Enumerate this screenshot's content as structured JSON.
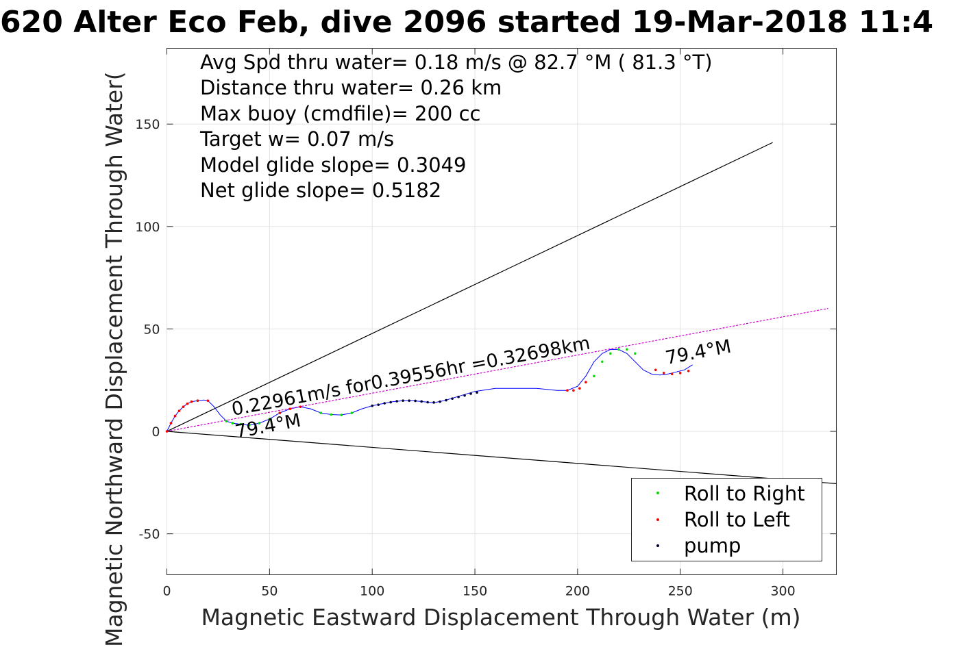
{
  "figure": {
    "title": "620 Alter Eco Feb, dive 2096 started 19-Mar-2018 11:4"
  },
  "chart_data": {
    "type": "scatter",
    "title": "620 Alter Eco Feb, dive 2096 started 19-Mar-2018 11:4",
    "xlabel": "Magnetic Eastward Displacement Through Water (m)",
    "ylabel": "Magnetic Northward Displacement Through Water(",
    "xlim": [
      0,
      326
    ],
    "ylim": [
      -70,
      187
    ],
    "xticks": [
      0,
      50,
      100,
      150,
      200,
      250,
      300
    ],
    "yticks": [
      -50,
      0,
      50,
      100,
      150
    ],
    "xtick_labels": [
      "0",
      "50",
      "100",
      "150",
      "200",
      "250",
      "300"
    ],
    "ytick_labels": [
      "-50",
      "0",
      "50",
      "100",
      "150"
    ],
    "grid": true,
    "stats_lines": [
      "Avg Spd thru water=  0.18 m/s @  82.7 °M ( 81.3 °T)",
      "Distance thru water=  0.26 km",
      "Max buoy (cmdfile)= 200 cc",
      "Target w= 0.07 m/s",
      "Model glide slope= 0.3049",
      "Net glide slope= 0.5182"
    ],
    "annotations": {
      "rate_label": "0.22961m/s for0.39556hr =0.32698km",
      "start_heading": "79.4°M",
      "end_heading": "79.4°M"
    },
    "legend": {
      "placement": "bottom-right",
      "entries": [
        {
          "label": "Roll to Right",
          "color": "#00e000"
        },
        {
          "label": "Roll to Left",
          "color": "#ff0000"
        },
        {
          "label": "pump",
          "color": "#000033"
        }
      ]
    },
    "colors": {
      "track": "#0000ff",
      "net_line": "#cc00cc",
      "bounds": "#000000",
      "roll_right": "#00e000",
      "roll_left": "#ff0000",
      "pump": "#000033"
    },
    "bound_lines": [
      {
        "name": "upper",
        "x": [
          0,
          295
        ],
        "y": [
          0,
          141
        ]
      },
      {
        "name": "lower",
        "x": [
          0,
          326
        ],
        "y": [
          0,
          -25.5
        ]
      }
    ],
    "net_line": {
      "x": [
        0,
        322
      ],
      "y": [
        0,
        60
      ]
    },
    "track": {
      "x": [
        0,
        2,
        4,
        6,
        8,
        10,
        12,
        15,
        18,
        20,
        23,
        26,
        29,
        32,
        36,
        40,
        45,
        50,
        55,
        60,
        65,
        70,
        75,
        80,
        85,
        90,
        95,
        100,
        105,
        110,
        115,
        120,
        125,
        130,
        135,
        140,
        145,
        150,
        160,
        170,
        180,
        190,
        195,
        200,
        204,
        208,
        212,
        216,
        220,
        224,
        228,
        232,
        236,
        240,
        244,
        248,
        252,
        256
      ],
      "y": [
        0,
        4,
        7.5,
        10,
        12,
        13.5,
        14.5,
        15,
        15.3,
        15,
        12,
        8,
        5,
        4,
        3.5,
        3,
        4,
        6,
        9,
        11,
        12,
        11,
        9,
        8.2,
        8,
        9,
        11,
        12.5,
        13.5,
        14.5,
        15,
        15,
        14.5,
        14,
        15,
        16.5,
        18,
        19.5,
        21,
        21,
        21,
        20,
        20,
        22,
        27,
        34,
        38,
        40,
        40,
        38,
        34,
        30,
        28,
        27.5,
        28,
        29,
        30,
        32.5
      ]
    },
    "markers": {
      "roll_right": {
        "x": [
          10,
          12,
          15,
          29,
          32,
          36,
          40,
          45,
          50,
          55,
          75,
          80,
          85,
          90,
          208,
          212,
          216,
          220,
          224,
          228
        ],
        "y": [
          13.5,
          14.5,
          15,
          5,
          4,
          3.5,
          3,
          4,
          6,
          9,
          9,
          8.2,
          8,
          9,
          27,
          34,
          38,
          40,
          40,
          38
        ]
      },
      "roll_left": {
        "x": [
          0,
          2,
          4,
          6,
          8,
          10,
          12,
          15,
          20,
          55,
          60,
          65,
          195,
          198,
          201,
          204,
          238,
          242,
          246,
          250,
          254
        ],
        "y": [
          0,
          4,
          7.5,
          10,
          12,
          13.5,
          14.5,
          15,
          15,
          9,
          11,
          12,
          20,
          20,
          21,
          24,
          30,
          28.5,
          28,
          28.5,
          29.5
        ]
      },
      "pump": {
        "x": [
          100,
          103,
          106,
          109,
          112,
          115,
          118,
          121,
          124,
          127,
          130,
          133,
          136,
          139,
          142,
          145,
          148,
          151
        ],
        "y": [
          12.5,
          13,
          13.7,
          14.2,
          14.7,
          15,
          15,
          14.9,
          14.6,
          14.2,
          14.1,
          14.5,
          15.2,
          16,
          16.8,
          17.5,
          18.4,
          19
        ]
      }
    }
  }
}
